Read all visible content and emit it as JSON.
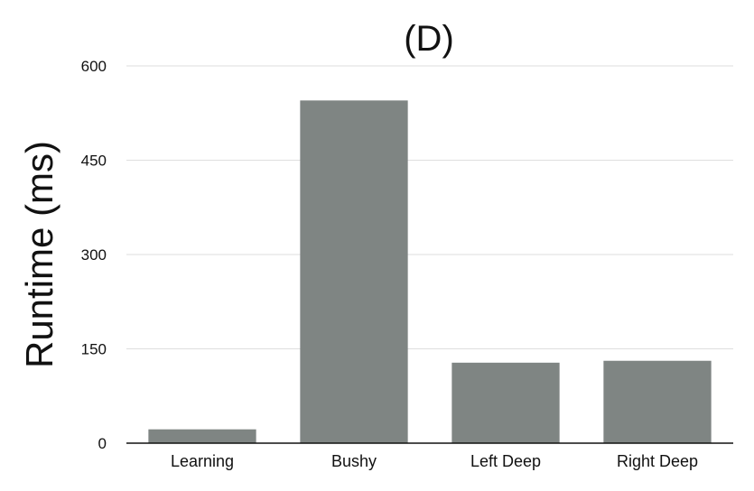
{
  "chart_data": {
    "type": "bar",
    "title": "(D)",
    "xlabel": "",
    "ylabel": "Runtime (ms)",
    "categories": [
      "Learning",
      "Bushy",
      "Left Deep",
      "Right Deep"
    ],
    "values": [
      22,
      545,
      128,
      131
    ],
    "ylim": [
      0,
      600
    ],
    "yticks": [
      0,
      150,
      300,
      450,
      600
    ],
    "grid": true,
    "bar_color": "#7f8583"
  }
}
